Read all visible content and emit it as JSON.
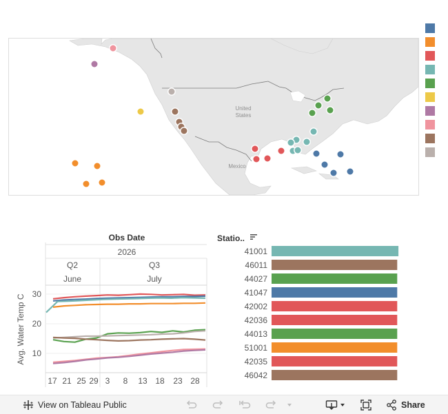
{
  "map": {
    "labels": {
      "united_states": "United States",
      "mexico": "Mexico"
    },
    "stations": [
      {
        "color": "#f0949e"
      },
      {
        "color": "#af79a4"
      },
      {
        "color": "#bab0ac"
      },
      {
        "color": "#edc948"
      },
      {
        "color": "#9c755f"
      },
      {
        "color": "#9c755f"
      },
      {
        "color": "#9c755f"
      },
      {
        "color": "#9c755f"
      },
      {
        "color": "#f28e2c"
      },
      {
        "color": "#f28e2c"
      },
      {
        "color": "#f28e2c"
      },
      {
        "color": "#f28e2c"
      },
      {
        "color": "#59a14f"
      },
      {
        "color": "#59a14f"
      },
      {
        "color": "#59a14f"
      },
      {
        "color": "#59a14f"
      },
      {
        "color": "#76b7b2"
      },
      {
        "color": "#76b7b2"
      },
      {
        "color": "#76b7b2"
      },
      {
        "color": "#76b7b2"
      },
      {
        "color": "#76b7b2"
      },
      {
        "color": "#76b7b2"
      },
      {
        "color": "#e15759"
      },
      {
        "color": "#e15759"
      },
      {
        "color": "#e15759"
      },
      {
        "color": "#e15759"
      },
      {
        "color": "#4e79a7"
      },
      {
        "color": "#4e79a7"
      },
      {
        "color": "#4e79a7"
      },
      {
        "color": "#4e79a7"
      },
      {
        "color": "#4e79a7"
      }
    ]
  },
  "legend": {
    "colors": [
      "#4e79a7",
      "#f28e2c",
      "#e15759",
      "#76b7b2",
      "#59a14f",
      "#edc948",
      "#af79a4",
      "#f0949e",
      "#9c755f",
      "#bab0ac"
    ]
  },
  "timeline": {
    "header": "Obs Date",
    "year": "2026",
    "quarters": [
      "Q2",
      "Q3"
    ],
    "months": [
      "June",
      "July"
    ],
    "ylabel": "Avg. Water Temp C",
    "yticks": [
      "30",
      "20",
      "10"
    ],
    "xticks": [
      "17",
      "21",
      "25",
      "29",
      "3",
      "8",
      "13",
      "18",
      "23",
      "28"
    ],
    "series": [
      {
        "color": "#e15759",
        "values": [
          28.4,
          28.8,
          29.1,
          29.3,
          29.5,
          29.7,
          29.6,
          29.8,
          30.0,
          29.9,
          29.7,
          29.8,
          29.9,
          29.6,
          29.7
        ]
      },
      {
        "color": "#4e79a7",
        "values": [
          27.7,
          28.0,
          28.2,
          28.3,
          28.5,
          28.6,
          28.7,
          28.8,
          28.9,
          29.0,
          29.1,
          29.1,
          29.2,
          29.2,
          29.3
        ]
      },
      {
        "color": "#76b7b2",
        "values": [
          23.8,
          27.5,
          27.6,
          27.8,
          28.0,
          28.2,
          28.3,
          28.4,
          28.5,
          28.6,
          28.7,
          28.6,
          28.8,
          28.7,
          28.6
        ]
      },
      {
        "color": "#f28e2c",
        "values": [
          25.6,
          26.0,
          26.2,
          26.4,
          26.5,
          26.6,
          26.6,
          26.7,
          26.7,
          26.8,
          26.8,
          26.8,
          26.9,
          26.9,
          27.0
        ]
      },
      {
        "color": "#59a14f",
        "values": [
          14.6,
          14.0,
          13.8,
          14.8,
          15.2,
          16.6,
          16.9,
          16.8,
          17.0,
          17.4,
          17.1,
          17.6,
          17.2,
          17.8,
          18.0
        ]
      },
      {
        "color": "#bab0ac",
        "values": [
          15.2,
          15.4,
          15.6,
          15.8,
          15.8,
          15.9,
          16.0,
          16.1,
          16.2,
          16.3,
          16.5,
          16.6,
          16.9,
          17.4,
          17.6
        ]
      },
      {
        "color": "#9c755f",
        "values": [
          15.4,
          15.2,
          15.1,
          14.8,
          14.6,
          14.4,
          14.2,
          14.3,
          14.5,
          14.6,
          14.8,
          14.9,
          15.0,
          14.8,
          14.5
        ]
      },
      {
        "color": "#f0949e",
        "values": [
          7.0,
          7.3,
          7.6,
          8.0,
          8.4,
          8.6,
          8.9,
          9.3,
          9.8,
          10.2,
          10.6,
          11.0,
          11.3,
          11.4,
          11.5
        ]
      },
      {
        "color": "#af79a4",
        "values": [
          6.6,
          6.9,
          7.3,
          7.8,
          8.1,
          8.5,
          8.7,
          9.0,
          9.4,
          9.8,
          10.1,
          10.4,
          10.8,
          11.0,
          11.2
        ]
      }
    ]
  },
  "bars": {
    "sort_label": "Statio..",
    "items": [
      {
        "station": "41001",
        "color": "#76b7b2",
        "fraction": 0.99
      },
      {
        "station": "46011",
        "color": "#9c755f",
        "fraction": 0.98
      },
      {
        "station": "44027",
        "color": "#59a14f",
        "fraction": 0.98
      },
      {
        "station": "41047",
        "color": "#4e79a7",
        "fraction": 0.98
      },
      {
        "station": "42002",
        "color": "#e15759",
        "fraction": 0.98
      },
      {
        "station": "42036",
        "color": "#e15759",
        "fraction": 0.98
      },
      {
        "station": "44013",
        "color": "#59a14f",
        "fraction": 0.98
      },
      {
        "station": "51001",
        "color": "#f28e2c",
        "fraction": 0.98
      },
      {
        "station": "42035",
        "color": "#e15759",
        "fraction": 0.98
      },
      {
        "station": "46042",
        "color": "#9c755f",
        "fraction": 0.98
      }
    ]
  },
  "toolbar": {
    "view_label": "View on Tableau Public",
    "share_label": "Share"
  }
}
